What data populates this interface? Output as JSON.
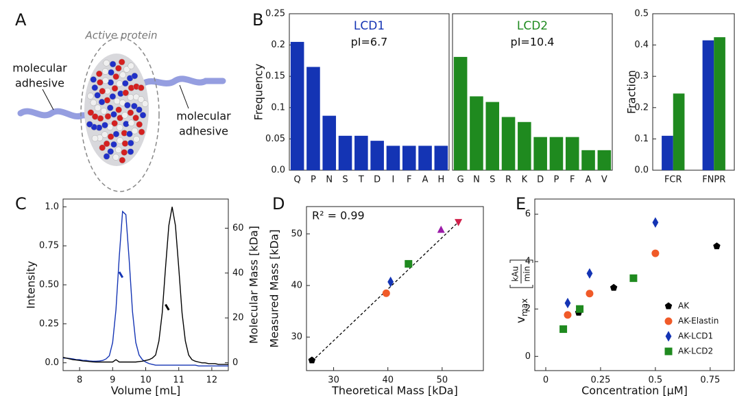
{
  "figure": {
    "panel_a": {
      "label": "A",
      "title": "Active protein",
      "left_label": [
        "molecular",
        "adhesive"
      ],
      "right_label": [
        "molecular",
        "adhesive"
      ]
    }
  },
  "chart_data": [
    {
      "type": "bar",
      "panel": "B",
      "title": "LCD1",
      "subtitle": "pI=6.7",
      "ylabel": "Frequency",
      "categories": [
        "Q",
        "P",
        "N",
        "S",
        "T",
        "D",
        "I",
        "F",
        "A",
        "H"
      ],
      "values": [
        0.205,
        0.165,
        0.087,
        0.055,
        0.055,
        0.047,
        0.039,
        0.039,
        0.039,
        0.039
      ],
      "color": "#1434b4",
      "ylim": [
        0,
        0.25
      ],
      "yticks": [
        {
          "value": 0,
          "label": "0.0"
        },
        0.05,
        0.1,
        0.15,
        0.2,
        0.25
      ]
    },
    {
      "type": "bar",
      "title": "LCD2",
      "subtitle": "pI=10.4",
      "categories": [
        "G",
        "N",
        "S",
        "R",
        "K",
        "D",
        "P",
        "F",
        "A",
        "V"
      ],
      "values": [
        0.181,
        0.118,
        0.109,
        0.085,
        0.077,
        0.053,
        0.053,
        0.053,
        0.032,
        0.032
      ],
      "color": "#1f8a1f",
      "ylim": [
        0,
        0.25
      ]
    },
    {
      "type": "grouped_bar",
      "ylabel": "Fraction",
      "categories": [
        "FCR",
        "FNPR"
      ],
      "series": [
        {
          "color": "#1434b4",
          "values": [
            0.11,
            0.415
          ]
        },
        {
          "color": "#1f8a1f",
          "values": [
            0.245,
            0.425
          ]
        }
      ],
      "ylim": [
        0,
        0.5
      ],
      "yticks": [
        {
          "value": 0,
          "label": "0.0"
        },
        0.1,
        0.2,
        0.3,
        0.4,
        0.5
      ]
    },
    {
      "type": "line",
      "panel": "C",
      "xlabel": "Volume [mL]",
      "ylabel": "Intensity",
      "y2label": "Molecular Mass [kDa]",
      "x": [
        7.5,
        7.6,
        7.7,
        7.8,
        7.9,
        8.0,
        8.1,
        8.2,
        8.3,
        8.4,
        8.5,
        8.6,
        8.7,
        8.8,
        8.9,
        9.0,
        9.1,
        9.2,
        9.3,
        9.4,
        9.5,
        9.6,
        9.7,
        9.8,
        9.9,
        10.0,
        10.1,
        10.2,
        10.3,
        10.4,
        10.5,
        10.6,
        10.7,
        10.8,
        10.9,
        11.0,
        11.1,
        11.2,
        11.3,
        11.4,
        11.5,
        11.6,
        11.7,
        11.8,
        11.9,
        12.0,
        12.1,
        12.2,
        12.3,
        12.4,
        12.5
      ],
      "series": [
        {
          "color": "#1434b4",
          "values": [
            0.03,
            0.03,
            0.028,
            0.025,
            0.02,
            0.02,
            0.015,
            0.015,
            0.012,
            0.01,
            0.01,
            0.012,
            0.015,
            0.025,
            0.045,
            0.13,
            0.34,
            0.68,
            0.97,
            0.95,
            0.66,
            0.33,
            0.13,
            0.05,
            0.02,
            0.005,
            -0.005,
            -0.01,
            -0.015,
            -0.015,
            -0.015,
            -0.015,
            -0.015,
            -0.015,
            -0.015,
            -0.015,
            -0.015,
            -0.015,
            -0.015,
            -0.015,
            -0.015,
            -0.02,
            -0.02,
            -0.02,
            -0.02,
            -0.02,
            -0.02,
            -0.02,
            -0.02,
            -0.02,
            -0.02
          ]
        },
        {
          "color": "#000000",
          "values": [
            0.035,
            0.03,
            0.025,
            0.02,
            0.018,
            0.015,
            0.012,
            0.01,
            0.008,
            0.006,
            0.005,
            0.005,
            0.005,
            0.005,
            0.005,
            0.005,
            0.02,
            0.005,
            0.005,
            0.005,
            0.005,
            0.005,
            0.005,
            0.008,
            0.01,
            0.015,
            0.02,
            0.03,
            0.05,
            0.14,
            0.32,
            0.61,
            0.88,
            1.0,
            0.88,
            0.61,
            0.32,
            0.14,
            0.05,
            0.02,
            0.01,
            0.005,
            0,
            0,
            -0.005,
            -0.005,
            -0.005,
            -0.01,
            -0.01,
            -0.01,
            -0.01
          ]
        },
        {
          "color": "#1434b4",
          "axis": "y2",
          "values": [
            null,
            null,
            null,
            null,
            null,
            null,
            null,
            null,
            null,
            null,
            null,
            null,
            null,
            null,
            null,
            null,
            null,
            40.5,
            38,
            null,
            null,
            null,
            null,
            null,
            null,
            null,
            null,
            null,
            null,
            null,
            null,
            null,
            null,
            null,
            null,
            null,
            null,
            null,
            null,
            null,
            null,
            null,
            null,
            null,
            null,
            null,
            null,
            null,
            null,
            null,
            null
          ]
        },
        {
          "color": "#000000",
          "axis": "y2",
          "values": [
            null,
            null,
            null,
            null,
            null,
            null,
            null,
            null,
            null,
            null,
            null,
            null,
            null,
            null,
            null,
            null,
            null,
            null,
            null,
            null,
            null,
            null,
            null,
            null,
            null,
            null,
            null,
            null,
            null,
            null,
            null,
            26,
            23.5,
            null,
            null,
            null,
            null,
            null,
            null,
            null,
            null,
            null,
            null,
            null,
            null,
            null,
            null,
            null,
            null,
            null,
            null
          ]
        }
      ],
      "xlim": [
        7.5,
        12.5
      ],
      "xticks": [
        8,
        9,
        10,
        11,
        12
      ],
      "ylim": [
        -0.05,
        1.05
      ],
      "yticks": [
        {
          "value": 0,
          "label": "0.0"
        },
        0.25,
        {
          "value": 0.5,
          "label": "0.50"
        },
        0.75,
        {
          "value": 1,
          "label": "1.0"
        }
      ],
      "y2lim": [
        -3.5,
        73
      ],
      "y2ticks": [
        0,
        20,
        40,
        60
      ]
    },
    {
      "type": "scatter",
      "panel": "D",
      "xlabel": "Theoretical Mass [kDa]",
      "ylabel": "Measured Mass [kDa]",
      "annotation": "R² = 0.99",
      "xlim": [
        25,
        57.6
      ],
      "xticks": [
        30,
        40,
        50
      ],
      "ylim": [
        23.5,
        55.3
      ],
      "yticks": [
        30,
        40,
        50
      ],
      "fit": {
        "x": [
          26,
          53.5
        ],
        "y": [
          25.3,
          52.8
        ],
        "color": "#000000"
      },
      "series": [
        {
          "marker": "pentagon",
          "color": "#000000",
          "x": [
            26
          ],
          "values": [
            25.5
          ]
        },
        {
          "marker": "circle",
          "color": "#f05a28",
          "x": [
            39.7
          ],
          "values": [
            38.5
          ]
        },
        {
          "marker": "diamond",
          "color": "#1434b4",
          "x": [
            40.5
          ],
          "values": [
            40.7
          ]
        },
        {
          "marker": "square",
          "color": "#1f8a1f",
          "x": [
            43.8
          ],
          "values": [
            44.2
          ]
        },
        {
          "marker": "triangle",
          "color": "#9b1ba8",
          "x": [
            49.8
          ],
          "values": [
            50.8
          ]
        },
        {
          "marker": "triangle-down",
          "color": "#d0204a",
          "x": [
            53
          ],
          "values": [
            52.3
          ]
        }
      ]
    },
    {
      "type": "scatter",
      "panel": "E",
      "xlabel": "Concentration [μM]",
      "ylabel": {
        "symbol": "v",
        "subscript": "max",
        "unit_num": "kAu",
        "unit_den": "min"
      },
      "legend": "lower right",
      "xlim": [
        -0.05,
        0.86
      ],
      "xticks": [
        0,
        0.25,
        0.5,
        0.75
      ],
      "ylim": [
        -0.6,
        6.64
      ],
      "yticks": [
        0,
        2,
        4,
        6
      ],
      "series": [
        {
          "name": "AK",
          "marker": "pentagon",
          "color": "#000000",
          "x": [
            0.15,
            0.31,
            0.78
          ],
          "values": [
            1.85,
            2.9,
            4.65
          ]
        },
        {
          "name": "AK-Elastin",
          "marker": "circle",
          "color": "#f05a28",
          "x": [
            0.1,
            0.2,
            0.5
          ],
          "values": [
            1.75,
            2.65,
            4.35
          ]
        },
        {
          "name": "AK-LCD1",
          "marker": "diamond",
          "color": "#1434b4",
          "x": [
            0.1,
            0.2,
            0.5
          ],
          "values": [
            2.25,
            3.5,
            5.65
          ]
        },
        {
          "name": "AK-LCD2",
          "marker": "square",
          "color": "#1f8a1f",
          "x": [
            0.08,
            0.155,
            0.4
          ],
          "values": [
            1.15,
            2.0,
            3.3
          ]
        }
      ]
    }
  ]
}
